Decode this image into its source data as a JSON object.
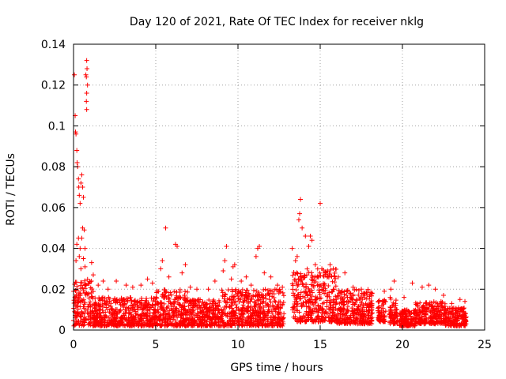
{
  "chart_data": {
    "type": "scatter",
    "title": "Day 120 of 2021, Rate Of TEC Index for receiver nklg",
    "xlabel": "GPS time / hours",
    "ylabel": "ROTI / TECUs",
    "xlim": [
      0,
      25
    ],
    "ylim": [
      0,
      0.14
    ],
    "xticks": [
      0,
      5,
      10,
      15,
      20,
      25
    ],
    "xtick_labels": [
      "0",
      "5",
      "10",
      "15",
      "20",
      "25"
    ],
    "yticks": [
      0,
      0.02,
      0.04,
      0.06,
      0.08,
      0.1,
      0.12,
      0.14
    ],
    "ytick_labels": [
      "0",
      "0.02",
      "0.04",
      "0.06",
      "0.08",
      "0.1",
      "0.12",
      "0.14"
    ],
    "grid": true,
    "marker": "plus",
    "color": "#ff0000",
    "series": [
      {
        "name": "ROTI",
        "points": [
          [
            0.05,
            0.125
          ],
          [
            0.1,
            0.105
          ],
          [
            0.12,
            0.097
          ],
          [
            0.15,
            0.096
          ],
          [
            0.2,
            0.088
          ],
          [
            0.22,
            0.082
          ],
          [
            0.25,
            0.08
          ],
          [
            0.3,
            0.074
          ],
          [
            0.32,
            0.07
          ],
          [
            0.35,
            0.066
          ],
          [
            0.4,
            0.062
          ],
          [
            0.45,
            0.072
          ],
          [
            0.5,
            0.076
          ],
          [
            0.55,
            0.07
          ],
          [
            0.6,
            0.065
          ],
          [
            0.55,
            0.05
          ],
          [
            0.65,
            0.049
          ],
          [
            0.5,
            0.045
          ],
          [
            0.3,
            0.045
          ],
          [
            0.2,
            0.042
          ],
          [
            0.4,
            0.04
          ],
          [
            0.7,
            0.04
          ],
          [
            0.35,
            0.036
          ],
          [
            0.6,
            0.035
          ],
          [
            0.15,
            0.034
          ],
          [
            0.45,
            0.03
          ],
          [
            0.7,
            0.031
          ],
          [
            0.8,
            0.132
          ],
          [
            0.82,
            0.128
          ],
          [
            0.78,
            0.124
          ],
          [
            0.85,
            0.12
          ],
          [
            0.8,
            0.116
          ],
          [
            0.78,
            0.112
          ],
          [
            0.8,
            0.108
          ],
          [
            0.75,
            0.125
          ],
          [
            1.1,
            0.033
          ],
          [
            1.2,
            0.027
          ],
          [
            1.5,
            0.022
          ],
          [
            1.8,
            0.024
          ],
          [
            2.1,
            0.02
          ],
          [
            2.6,
            0.024
          ],
          [
            3.2,
            0.022
          ],
          [
            3.6,
            0.021
          ],
          [
            4.1,
            0.022
          ],
          [
            4.5,
            0.025
          ],
          [
            4.8,
            0.023
          ],
          [
            5.3,
            0.03
          ],
          [
            5.4,
            0.034
          ],
          [
            5.6,
            0.05
          ],
          [
            5.8,
            0.026
          ],
          [
            6.2,
            0.042
          ],
          [
            6.3,
            0.041
          ],
          [
            6.6,
            0.028
          ],
          [
            6.8,
            0.032
          ],
          [
            7.1,
            0.021
          ],
          [
            7.5,
            0.02
          ],
          [
            8.2,
            0.02
          ],
          [
            8.6,
            0.024
          ],
          [
            9.1,
            0.029
          ],
          [
            9.2,
            0.034
          ],
          [
            9.3,
            0.041
          ],
          [
            9.6,
            0.025
          ],
          [
            9.7,
            0.031
          ],
          [
            9.8,
            0.032
          ],
          [
            10.2,
            0.024
          ],
          [
            10.5,
            0.026
          ],
          [
            10.8,
            0.022
          ],
          [
            11.1,
            0.036
          ],
          [
            11.2,
            0.04
          ],
          [
            11.3,
            0.041
          ],
          [
            11.6,
            0.028
          ],
          [
            12.0,
            0.026
          ],
          [
            12.4,
            0.022
          ],
          [
            12.7,
            0.021
          ],
          [
            13.3,
            0.04
          ],
          [
            13.5,
            0.034
          ],
          [
            13.6,
            0.036
          ],
          [
            13.7,
            0.054
          ],
          [
            13.75,
            0.057
          ],
          [
            13.8,
            0.064
          ],
          [
            13.9,
            0.05
          ],
          [
            14.1,
            0.046
          ],
          [
            14.3,
            0.041
          ],
          [
            14.4,
            0.046
          ],
          [
            14.5,
            0.044
          ],
          [
            14.7,
            0.032
          ],
          [
            15.0,
            0.062
          ],
          [
            15.1,
            0.03
          ],
          [
            15.3,
            0.028
          ],
          [
            15.6,
            0.032
          ],
          [
            15.8,
            0.03
          ],
          [
            16.1,
            0.026
          ],
          [
            16.5,
            0.028
          ],
          [
            17.0,
            0.021
          ],
          [
            17.5,
            0.02
          ],
          [
            17.9,
            0.019
          ],
          [
            18.9,
            0.019
          ],
          [
            19.3,
            0.02
          ],
          [
            19.5,
            0.024
          ],
          [
            20.1,
            0.016
          ],
          [
            20.6,
            0.023
          ],
          [
            20.9,
            0.012
          ],
          [
            21.2,
            0.021
          ],
          [
            21.6,
            0.022
          ],
          [
            22.0,
            0.02
          ],
          [
            22.5,
            0.017
          ],
          [
            23.0,
            0.013
          ],
          [
            23.5,
            0.015
          ],
          [
            23.8,
            0.014
          ]
        ]
      }
    ],
    "dense_bands": [
      [
        0.0,
        1.2,
        0.002,
        0.025
      ],
      [
        1.2,
        5.0,
        0.002,
        0.016
      ],
      [
        5.0,
        7.0,
        0.002,
        0.02
      ],
      [
        7.0,
        9.0,
        0.002,
        0.015
      ],
      [
        9.0,
        12.8,
        0.002,
        0.02
      ],
      [
        13.3,
        16.0,
        0.004,
        0.03
      ],
      [
        16.0,
        18.2,
        0.003,
        0.02
      ],
      [
        18.5,
        19.0,
        0.004,
        0.015
      ],
      [
        19.2,
        19.7,
        0.003,
        0.017
      ],
      [
        19.8,
        20.8,
        0.002,
        0.01
      ],
      [
        20.8,
        21.5,
        0.003,
        0.014
      ],
      [
        21.6,
        22.6,
        0.003,
        0.014
      ],
      [
        22.6,
        23.9,
        0.002,
        0.011
      ]
    ]
  }
}
